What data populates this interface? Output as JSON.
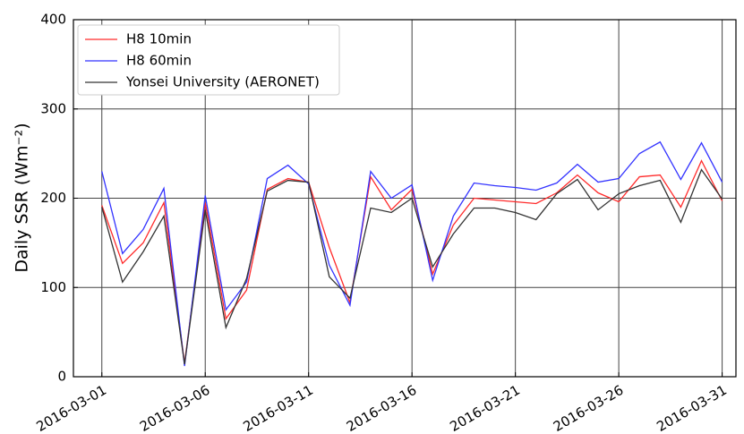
{
  "chart_data": {
    "type": "line",
    "y_label": "Daily SSR (Wm⁻²)",
    "x": [
      "2016-03-01",
      "2016-03-02",
      "2016-03-03",
      "2016-03-04",
      "2016-03-05",
      "2016-03-06",
      "2016-03-07",
      "2016-03-08",
      "2016-03-09",
      "2016-03-10",
      "2016-03-11",
      "2016-03-12",
      "2016-03-13",
      "2016-03-14",
      "2016-03-15",
      "2016-03-16",
      "2016-03-17",
      "2016-03-18",
      "2016-03-19",
      "2016-03-20",
      "2016-03-21",
      "2016-03-22",
      "2016-03-23",
      "2016-03-24",
      "2016-03-25",
      "2016-03-26",
      "2016-03-27",
      "2016-03-28",
      "2016-03-29",
      "2016-03-30",
      "2016-03-31"
    ],
    "series": [
      {
        "name": "H8 10min",
        "color": "#ff2a2a",
        "values": [
          192,
          127,
          150,
          195,
          15,
          195,
          65,
          97,
          210,
          222,
          218,
          145,
          83,
          224,
          187,
          210,
          115,
          170,
          200,
          198,
          196,
          194,
          206,
          226,
          206,
          196,
          224,
          226,
          190,
          242,
          197
        ]
      },
      {
        "name": "H8 60min",
        "color": "#3333ff",
        "values": [
          230,
          138,
          165,
          211,
          12,
          203,
          75,
          106,
          222,
          237,
          216,
          125,
          80,
          230,
          200,
          215,
          108,
          180,
          217,
          214,
          212,
          209,
          217,
          238,
          218,
          222,
          250,
          263,
          221,
          262,
          218
        ]
      },
      {
        "name": "Yonsei University (AERONET)",
        "color": "#333333",
        "values": [
          190,
          106,
          140,
          180,
          14,
          187,
          55,
          110,
          208,
          220,
          218,
          112,
          88,
          189,
          184,
          200,
          123,
          160,
          189,
          189,
          184,
          176,
          205,
          221,
          187,
          205,
          214,
          220,
          173,
          232,
          199
        ]
      }
    ],
    "xlim": [
      "2016-02-28T15:00",
      "2016-03-31T16:00"
    ],
    "xticks": [
      "2016-03-01",
      "2016-03-06",
      "2016-03-11",
      "2016-03-16",
      "2016-03-21",
      "2016-03-26",
      "2016-03-31"
    ],
    "ylim": [
      0,
      400
    ],
    "yticks": [
      0,
      100,
      200,
      300,
      400
    ],
    "grid": true,
    "legend": "upper-left"
  }
}
